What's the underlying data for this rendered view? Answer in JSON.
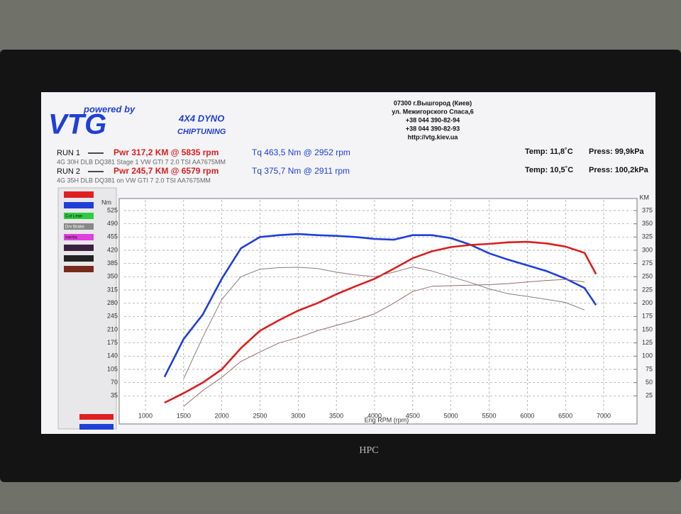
{
  "header": {
    "powered_by": "powered by",
    "logo": "VTG",
    "product": "4X4 DYNO",
    "service": "CHIPTUNING",
    "address": [
      "07300 г.Вышгород (Киев)",
      "ул. Межигорского Спаса,6",
      "+38 044 390-82-94",
      "+38 044 390-82-93",
      "http://vtg.kiev.ua"
    ]
  },
  "runs": [
    {
      "name": "RUN 1",
      "power": "Pwr  317,2 KM @ 5835 rpm",
      "torque": "Tq 463,5 Nm @ 2952 rpm",
      "description": "4G 30H DLB DQ381 Stage 1 VW GTI 7 2.0 TSI AA7675MM",
      "temp": "Temp: 11,8˚C",
      "press": "Press: 99,9kPa"
    },
    {
      "name": "RUN 2",
      "power": "Pwr  245,7 KM @ 6579 rpm",
      "torque": "Tq 375,7 Nm @ 2911 rpm",
      "description": "4G 35H DLB DQ381 on VW GTI 7 2.0 TSI AA7675MM",
      "temp": "Temp: 10,5˚C",
      "press": "Press: 100,2kPa"
    }
  ],
  "sidebar": [
    "Cut Lean",
    "Drv Brake",
    "Inertia"
  ],
  "monitor_brand": "HPC",
  "chart_data": {
    "type": "line",
    "x_label": "Eng RPM (rpm)",
    "y_label": "Nm",
    "y2_label": "KM",
    "x": [
      1250,
      1500,
      1750,
      2000,
      2250,
      2500,
      2750,
      3000,
      3250,
      3500,
      3750,
      4000,
      4250,
      4500,
      4750,
      5000,
      5250,
      5500,
      5750,
      6000,
      6250,
      6500,
      6750,
      6900
    ],
    "series": [
      {
        "color": "#1f3fd8",
        "line_width": 2.6,
        "values": [
          85,
          185,
          250,
          345,
          425,
          455,
          460,
          463,
          460,
          458,
          455,
          450,
          448,
          460,
          460,
          452,
          435,
          412,
          395,
          380,
          365,
          345,
          320,
          275
        ]
      },
      {
        "color": "#d81f1f",
        "line_width": 2.6,
        "axis": "y2",
        "values": [
          12,
          30,
          50,
          75,
          115,
          148,
          168,
          186,
          200,
          217,
          232,
          246,
          265,
          285,
          298,
          306,
          310,
          312,
          315,
          316,
          313,
          307,
          295,
          255
        ]
      },
      {
        "color": "#8a7a7a",
        "line_width": 1,
        "values": [
          null,
          80,
          190,
          290,
          350,
          370,
          374,
          375,
          372,
          362,
          355,
          350,
          362,
          376,
          365,
          350,
          335,
          318,
          305,
          298,
          290,
          282,
          262,
          null
        ]
      },
      {
        "color": "#9a6a6a",
        "line_width": 1,
        "axis": "y2",
        "values": [
          null,
          5,
          35,
          60,
          90,
          108,
          125,
          135,
          148,
          158,
          168,
          180,
          200,
          222,
          232,
          233,
          234,
          235,
          237,
          240,
          243,
          245,
          240,
          null
        ]
      }
    ],
    "xlim": [
      1000,
      7000
    ],
    "xticks": [
      1000,
      1500,
      2000,
      2500,
      3000,
      3500,
      4000,
      4500,
      5000,
      5500,
      6000,
      6500,
      7000
    ],
    "ylim": [
      0,
      525
    ],
    "yticks": [
      35,
      70,
      105,
      140,
      175,
      210,
      245,
      280,
      315,
      350,
      385,
      420,
      455,
      490,
      525
    ],
    "y2lim": [
      0,
      375
    ],
    "y2ticks": [
      25,
      50,
      75,
      100,
      125,
      150,
      175,
      200,
      225,
      250,
      275,
      300,
      325,
      350,
      375
    ],
    "grid": true
  }
}
